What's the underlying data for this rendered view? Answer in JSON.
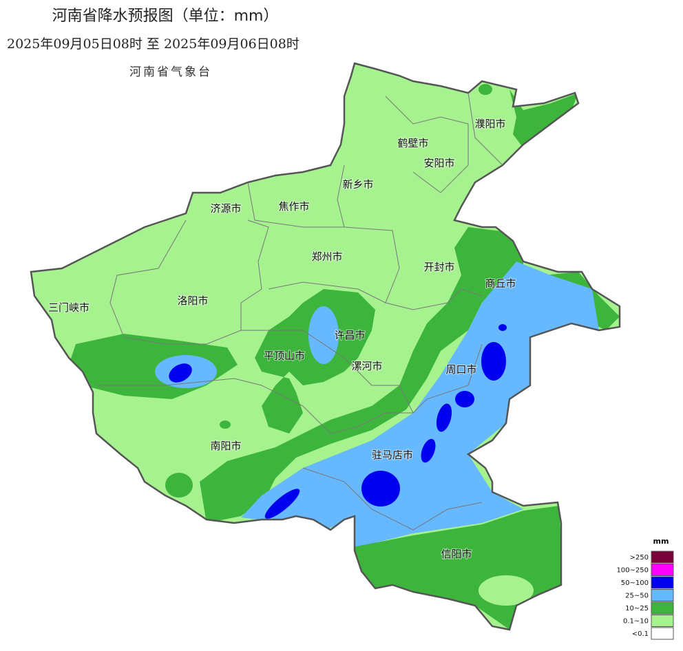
{
  "header": {
    "title": "河南省降水预报图（单位：mm）",
    "period": "2025年09月05日08时  至  2025年09月06日08时",
    "agency": "河南省气象台"
  },
  "cities": [
    "三门峡市",
    "洛阳市",
    "济源市",
    "焦作市",
    "新乡市",
    "鹤壁市",
    "安阳市",
    "濮阳市",
    "郑州市",
    "开封市",
    "商丘市",
    "许昌市",
    "平顶山市",
    "漯河市",
    "周口市",
    "南阳市",
    "驻马店市",
    "信阳市"
  ],
  "legend": {
    "unit": "mm",
    "items": [
      {
        "label": ">250",
        "color": "#7a0038"
      },
      {
        "label": "100~250",
        "color": "#ff00ff"
      },
      {
        "label": "50~100",
        "color": "#0000ee"
      },
      {
        "label": "25~50",
        "color": "#66b8ff"
      },
      {
        "label": "10~25",
        "color": "#3db53d"
      },
      {
        "label": "0.1~10",
        "color": "#a6f28f"
      },
      {
        "label": "<0.1",
        "color": "#ffffff"
      }
    ]
  }
}
